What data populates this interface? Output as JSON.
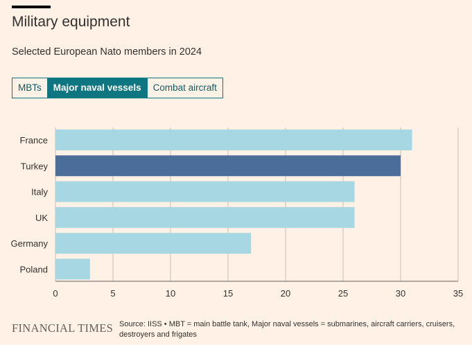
{
  "header": {
    "title": "Military equipment",
    "subtitle": "Selected European Nato members in 2024"
  },
  "tabs": [
    {
      "label": "MBTs",
      "active": false
    },
    {
      "label": "Major naval vessels",
      "active": true
    },
    {
      "label": "Combat aircraft",
      "active": false
    }
  ],
  "colors": {
    "bar": "#a8d7e4",
    "bar_highlight": "#4a6e99",
    "gridline": "#c9bfb6",
    "accent": "#0d7680"
  },
  "chart_data": {
    "type": "bar",
    "orientation": "horizontal",
    "title": "",
    "xlabel": "",
    "ylabel": "",
    "categories": [
      "France",
      "Turkey",
      "Italy",
      "UK",
      "Germany",
      "Poland"
    ],
    "values": [
      31,
      30,
      26,
      26,
      17,
      3
    ],
    "highlight": "Turkey",
    "xlim": [
      0,
      35
    ],
    "xticks": [
      0,
      5,
      10,
      15,
      20,
      25,
      30,
      35
    ],
    "grid": true
  },
  "footer": {
    "brand": "FINANCIAL TIMES",
    "source": "Source: IISS • MBT = main battle tank, Major naval vessels = submarines, aircraft carriers, cruisers, destroyers and frigates"
  }
}
